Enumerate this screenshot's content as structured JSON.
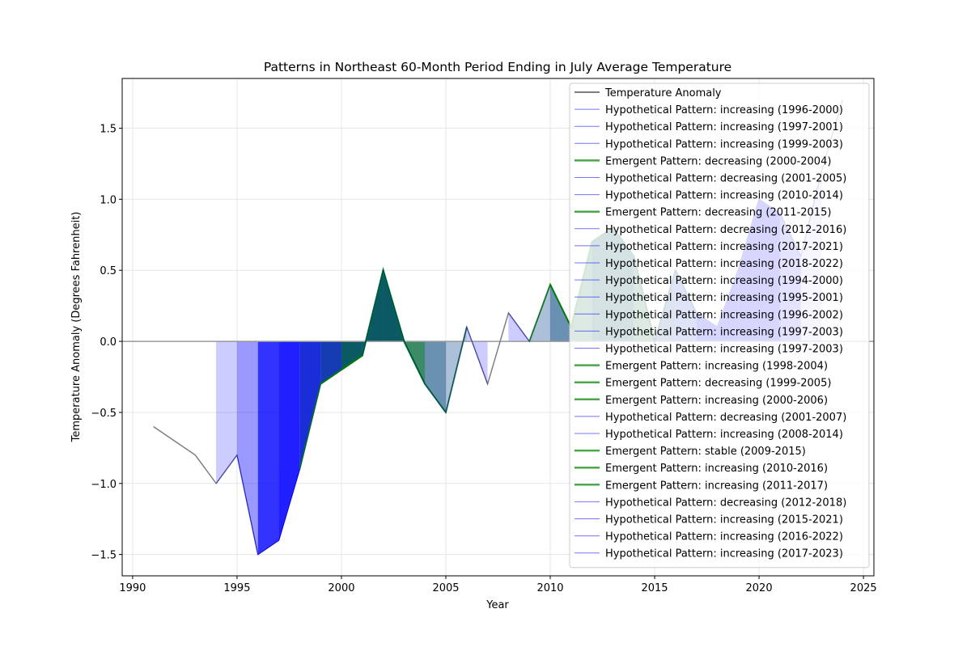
{
  "chart_data": {
    "type": "area",
    "title": "Patterns in Northeast 60-Month Period Ending in July Average Temperature",
    "xlabel": "Year",
    "ylabel": "Temperature Anomaly (Degrees Fahrenheit)",
    "xlim": [
      1989.5,
      2025.5
    ],
    "ylim": [
      -1.65,
      1.85
    ],
    "xticks": [
      1990,
      1995,
      2000,
      2005,
      2010,
      2015,
      2020,
      2025
    ],
    "yticks": [
      -1.5,
      -1.0,
      -0.5,
      0.0,
      0.5,
      1.0,
      1.5
    ],
    "grid": true,
    "legend_position": "top-right",
    "colors": {
      "anomaly": "#7f7f7f",
      "hypothetical": "#0000ff",
      "emergent": "#008000",
      "zero_line": "#999999"
    },
    "anomaly_series": {
      "name": "Temperature Anomaly",
      "x": [
        1991,
        1992,
        1993,
        1994,
        1995,
        1996,
        1997,
        1998,
        1999,
        2000,
        2001,
        2002,
        2003,
        2004,
        2005,
        2006,
        2007,
        2008,
        2009,
        2010,
        2011,
        2012,
        2013,
        2014,
        2015,
        2016,
        2017,
        2018,
        2019,
        2020,
        2021,
        2022,
        2023,
        2024
      ],
      "y": [
        -0.6,
        -0.7,
        -0.8,
        -1.0,
        -0.8,
        -1.5,
        -1.4,
        -0.9,
        -0.3,
        -0.2,
        -0.1,
        0.5,
        0.0,
        -0.3,
        -0.5,
        0.1,
        -0.3,
        0.2,
        0.0,
        0.4,
        0.1,
        0.7,
        0.8,
        0.6,
        0.0,
        0.5,
        0.2,
        0.1,
        0.5,
        1.0,
        0.9,
        0.6,
        1.2,
        1.7
      ]
    },
    "patterns": [
      {
        "label": "Hypothetical Pattern: increasing (1996-2000)",
        "kind": "hypothetical",
        "start": 1996,
        "end": 2000
      },
      {
        "label": "Hypothetical Pattern: increasing (1997-2001)",
        "kind": "hypothetical",
        "start": 1997,
        "end": 2001
      },
      {
        "label": "Hypothetical Pattern: increasing (1999-2003)",
        "kind": "hypothetical",
        "start": 1999,
        "end": 2003
      },
      {
        "label": "Emergent Pattern: decreasing (2000-2004)",
        "kind": "emergent",
        "start": 2000,
        "end": 2004
      },
      {
        "label": "Hypothetical Pattern: decreasing (2001-2005)",
        "kind": "hypothetical",
        "start": 2001,
        "end": 2005
      },
      {
        "label": "Hypothetical Pattern: increasing (2010-2014)",
        "kind": "hypothetical",
        "start": 2010,
        "end": 2014
      },
      {
        "label": "Emergent Pattern: decreasing (2011-2015)",
        "kind": "emergent",
        "start": 2011,
        "end": 2015
      },
      {
        "label": "Hypothetical Pattern: decreasing (2012-2016)",
        "kind": "hypothetical",
        "start": 2012,
        "end": 2016
      },
      {
        "label": "Hypothetical Pattern: increasing (2017-2021)",
        "kind": "hypothetical",
        "start": 2017,
        "end": 2021
      },
      {
        "label": "Hypothetical Pattern: increasing (2018-2022)",
        "kind": "hypothetical",
        "start": 2018,
        "end": 2022
      },
      {
        "label": "Hypothetical Pattern: increasing (1994-2000)",
        "kind": "hypothetical",
        "start": 1994,
        "end": 2000
      },
      {
        "label": "Hypothetical Pattern: increasing (1995-2001)",
        "kind": "hypothetical",
        "start": 1995,
        "end": 2001
      },
      {
        "label": "Hypothetical Pattern: increasing (1996-2002)",
        "kind": "hypothetical",
        "start": 1996,
        "end": 2002
      },
      {
        "label": "Hypothetical Pattern: increasing (1997-2003)",
        "kind": "hypothetical",
        "start": 1997,
        "end": 2003
      },
      {
        "label": "Hypothetical Pattern: increasing (1997-2003)",
        "kind": "hypothetical",
        "start": 1997,
        "end": 2003
      },
      {
        "label": "Emergent Pattern: increasing (1998-2004)",
        "kind": "emergent",
        "start": 1998,
        "end": 2004
      },
      {
        "label": "Emergent Pattern: decreasing (1999-2005)",
        "kind": "emergent",
        "start": 1999,
        "end": 2005
      },
      {
        "label": "Emergent Pattern: increasing (2000-2006)",
        "kind": "emergent",
        "start": 2000,
        "end": 2006
      },
      {
        "label": "Hypothetical Pattern: decreasing (2001-2007)",
        "kind": "hypothetical",
        "start": 2001,
        "end": 2007
      },
      {
        "label": "Hypothetical Pattern: increasing (2008-2014)",
        "kind": "hypothetical",
        "start": 2008,
        "end": 2014
      },
      {
        "label": "Emergent Pattern: stable (2009-2015)",
        "kind": "emergent",
        "start": 2009,
        "end": 2015
      },
      {
        "label": "Emergent Pattern: increasing (2010-2016)",
        "kind": "emergent",
        "start": 2010,
        "end": 2016
      },
      {
        "label": "Emergent Pattern: increasing (2011-2017)",
        "kind": "emergent",
        "start": 2011,
        "end": 2017
      },
      {
        "label": "Hypothetical Pattern: decreasing (2012-2018)",
        "kind": "hypothetical",
        "start": 2012,
        "end": 2018
      },
      {
        "label": "Hypothetical Pattern: increasing (2015-2021)",
        "kind": "hypothetical",
        "start": 2015,
        "end": 2021
      },
      {
        "label": "Hypothetical Pattern: increasing (2016-2022)",
        "kind": "hypothetical",
        "start": 2016,
        "end": 2022
      },
      {
        "label": "Hypothetical Pattern: increasing (2017-2023)",
        "kind": "hypothetical",
        "start": 2017,
        "end": 2023
      }
    ]
  }
}
